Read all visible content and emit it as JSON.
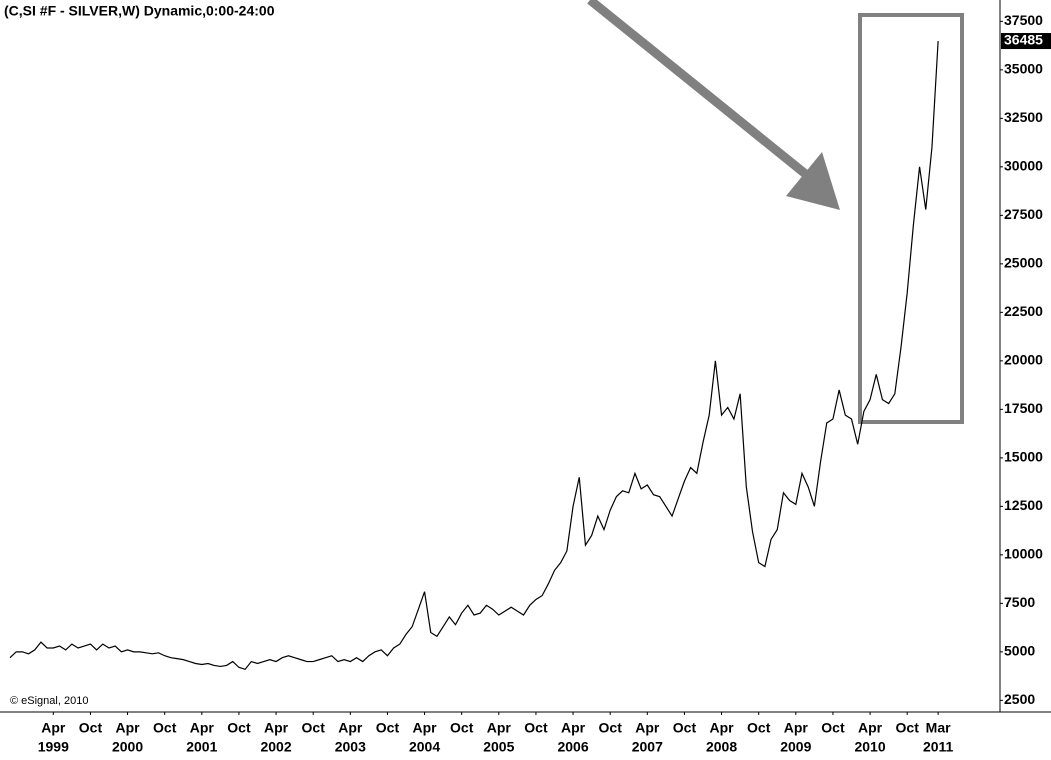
{
  "chart_data": {
    "type": "line",
    "title": "(C,SI #F - SILVER,W) Dynamic,0:00-24:00",
    "annotation": "© eSignal, 2010",
    "x": [
      "1998-09",
      "1998-10",
      "1998-11",
      "1998-12",
      "1999-01",
      "1999-02",
      "1999-03",
      "1999-04",
      "1999-05",
      "1999-06",
      "1999-07",
      "1999-08",
      "1999-09",
      "1999-10",
      "1999-11",
      "1999-12",
      "2000-01",
      "2000-02",
      "2000-03",
      "2000-04",
      "2000-05",
      "2000-06",
      "2000-07",
      "2000-08",
      "2000-09",
      "2000-10",
      "2000-11",
      "2000-12",
      "2001-01",
      "2001-02",
      "2001-03",
      "2001-04",
      "2001-05",
      "2001-06",
      "2001-07",
      "2001-08",
      "2001-09",
      "2001-10",
      "2001-11",
      "2001-12",
      "2002-01",
      "2002-02",
      "2002-03",
      "2002-04",
      "2002-05",
      "2002-06",
      "2002-07",
      "2002-08",
      "2002-09",
      "2002-10",
      "2002-11",
      "2002-12",
      "2003-01",
      "2003-02",
      "2003-03",
      "2003-04",
      "2003-05",
      "2003-06",
      "2003-07",
      "2003-08",
      "2003-09",
      "2003-10",
      "2003-11",
      "2003-12",
      "2004-01",
      "2004-02",
      "2004-03",
      "2004-04",
      "2004-05",
      "2004-06",
      "2004-07",
      "2004-08",
      "2004-09",
      "2004-10",
      "2004-11",
      "2004-12",
      "2005-01",
      "2005-02",
      "2005-03",
      "2005-04",
      "2005-05",
      "2005-06",
      "2005-07",
      "2005-08",
      "2005-09",
      "2005-10",
      "2005-11",
      "2005-12",
      "2006-01",
      "2006-02",
      "2006-03",
      "2006-04",
      "2006-05",
      "2006-06",
      "2006-07",
      "2006-08",
      "2006-09",
      "2006-10",
      "2006-11",
      "2006-12",
      "2007-01",
      "2007-02",
      "2007-03",
      "2007-04",
      "2007-05",
      "2007-06",
      "2007-07",
      "2007-08",
      "2007-09",
      "2007-10",
      "2007-11",
      "2007-12",
      "2008-01",
      "2008-02",
      "2008-03",
      "2008-04",
      "2008-05",
      "2008-06",
      "2008-07",
      "2008-08",
      "2008-09",
      "2008-10",
      "2008-11",
      "2008-12",
      "2009-01",
      "2009-02",
      "2009-03",
      "2009-04",
      "2009-05",
      "2009-06",
      "2009-07",
      "2009-08",
      "2009-09",
      "2009-10",
      "2009-11",
      "2009-12",
      "2010-01",
      "2010-02",
      "2010-03",
      "2010-04",
      "2010-05",
      "2010-06",
      "2010-07",
      "2010-08",
      "2010-09",
      "2010-10",
      "2010-11",
      "2010-12",
      "2011-01",
      "2011-02",
      "2011-03"
    ],
    "series": [
      {
        "name": "SILVER",
        "color": "#000000",
        "values": [
          4700,
          5000,
          5000,
          4900,
          5100,
          5500,
          5200,
          5200,
          5300,
          5100,
          5400,
          5200,
          5300,
          5400,
          5100,
          5400,
          5200,
          5300,
          5000,
          5100,
          5000,
          5000,
          4950,
          4900,
          4950,
          4800,
          4700,
          4650,
          4600,
          4500,
          4400,
          4350,
          4400,
          4300,
          4250,
          4300,
          4500,
          4200,
          4100,
          4500,
          4400,
          4500,
          4600,
          4500,
          4700,
          4800,
          4700,
          4600,
          4500,
          4500,
          4600,
          4700,
          4800,
          4500,
          4600,
          4500,
          4700,
          4500,
          4800,
          5000,
          5100,
          4800,
          5200,
          5400,
          5900,
          6300,
          7200,
          8100,
          6000,
          5800,
          6300,
          6800,
          6400,
          7000,
          7400,
          6900,
          7000,
          7400,
          7200,
          6900,
          7100,
          7300,
          7100,
          6900,
          7400,
          7700,
          7900,
          8500,
          9200,
          9600,
          10200,
          12500,
          14000,
          10500,
          11000,
          12000,
          11300,
          12300,
          13000,
          13300,
          13200,
          14200,
          13400,
          13600,
          13100,
          13000,
          12500,
          12000,
          12900,
          13800,
          14500,
          14200,
          15800,
          17200,
          20000,
          17200,
          17600,
          17000,
          18300,
          13500,
          11200,
          9600,
          9400,
          10800,
          11300,
          13200,
          12800,
          12600,
          14200,
          13500,
          12500,
          14800,
          16800,
          17000,
          18500,
          17200,
          17000,
          15700,
          17400,
          18000,
          19300,
          18000,
          17800,
          18300,
          20700,
          23500,
          27000,
          30000,
          27800,
          31000,
          36485
        ]
      }
    ],
    "xlim": [
      "1998-09",
      "2012-01"
    ],
    "xticks": [
      {
        "value": "1999-04",
        "label": "Apr"
      },
      {
        "value": "1999-10",
        "label": "Oct"
      },
      {
        "value": "2000-04",
        "label": "Apr"
      },
      {
        "value": "2000-10",
        "label": "Oct"
      },
      {
        "value": "2001-04",
        "label": "Apr"
      },
      {
        "value": "2001-10",
        "label": "Oct"
      },
      {
        "value": "2002-04",
        "label": "Apr"
      },
      {
        "value": "2002-10",
        "label": "Oct"
      },
      {
        "value": "2003-04",
        "label": "Apr"
      },
      {
        "value": "2003-10",
        "label": "Oct"
      },
      {
        "value": "2004-04",
        "label": "Apr"
      },
      {
        "value": "2004-10",
        "label": "Oct"
      },
      {
        "value": "2005-04",
        "label": "Apr"
      },
      {
        "value": "2005-10",
        "label": "Oct"
      },
      {
        "value": "2006-04",
        "label": "Apr"
      },
      {
        "value": "2006-10",
        "label": "Oct"
      },
      {
        "value": "2007-04",
        "label": "Apr"
      },
      {
        "value": "2007-10",
        "label": "Oct"
      },
      {
        "value": "2008-04",
        "label": "Apr"
      },
      {
        "value": "2008-10",
        "label": "Oct"
      },
      {
        "value": "2009-04",
        "label": "Apr"
      },
      {
        "value": "2009-10",
        "label": "Oct"
      },
      {
        "value": "2010-04",
        "label": "Apr"
      },
      {
        "value": "2010-10",
        "label": "Oct"
      },
      {
        "value": "2011-03",
        "label": "Mar"
      }
    ],
    "xtick_years": [
      {
        "value": "1999-04",
        "label": "1999"
      },
      {
        "value": "2000-04",
        "label": "2000"
      },
      {
        "value": "2001-04",
        "label": "2001"
      },
      {
        "value": "2002-04",
        "label": "2002"
      },
      {
        "value": "2003-04",
        "label": "2003"
      },
      {
        "value": "2004-04",
        "label": "2004"
      },
      {
        "value": "2005-04",
        "label": "2005"
      },
      {
        "value": "2006-04",
        "label": "2006"
      },
      {
        "value": "2007-04",
        "label": "2007"
      },
      {
        "value": "2008-04",
        "label": "2008"
      },
      {
        "value": "2009-04",
        "label": "2009"
      },
      {
        "value": "2010-04",
        "label": "2010"
      },
      {
        "value": "2011-03",
        "label": "2011"
      }
    ],
    "ylim": [
      1900,
      38600
    ],
    "yticks": [
      2500,
      5000,
      7500,
      10000,
      12500,
      15000,
      17500,
      20000,
      22500,
      25000,
      27500,
      30000,
      32500,
      35000,
      37500
    ],
    "grid": false
  }
}
